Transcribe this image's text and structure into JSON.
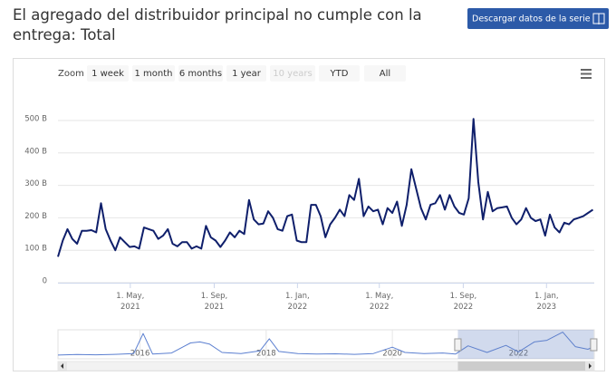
{
  "download_button": "Descargar datos de la serie",
  "range_selector": {
    "label": "Zoom",
    "buttons": [
      {
        "label": "1 week"
      },
      {
        "label": "1 month"
      },
      {
        "label": "6 months"
      },
      {
        "label": "1 year"
      },
      {
        "label": "10 years",
        "disabled": true
      },
      {
        "label": "YTD"
      },
      {
        "label": "All"
      }
    ]
  },
  "chart_data": [
    {
      "type": "line",
      "title": "El agregado del distribuidor principal no cumple con la entrega: Total",
      "color": "#0f1f6b",
      "grid": true,
      "ylim": [
        0,
        500
      ],
      "yticks": [
        0,
        {
          "value": 100,
          "label": "100 B"
        },
        {
          "value": 200,
          "label": "200 B"
        },
        {
          "value": 300,
          "label": "300 B"
        },
        {
          "value": 400,
          "label": "400 B"
        },
        {
          "value": 500,
          "label": "500 B"
        }
      ],
      "xlim": [
        "2021-01-15",
        "2023-03-12"
      ],
      "xticks": [
        {
          "value": "2021-05-01",
          "label": "1. May, 2021"
        },
        {
          "value": "2021-09-01",
          "label": "1. Sep, 2021"
        },
        {
          "value": "2022-01-01",
          "label": "1. Jan, 2022"
        },
        {
          "value": "2022-05-01",
          "label": "1. May, 2022"
        },
        {
          "value": "2022-09-01",
          "label": "1. Sep, 2022"
        },
        {
          "value": "2023-01-01",
          "label": "1. Jan, 2023"
        }
      ],
      "x": [
        "2021-01-15",
        "2021-01-22",
        "2021-01-29",
        "2021-02-05",
        "2021-02-12",
        "2021-02-19",
        "2021-02-26",
        "2021-03-05",
        "2021-03-12",
        "2021-03-19",
        "2021-03-26",
        "2021-04-02",
        "2021-04-09",
        "2021-04-16",
        "2021-04-23",
        "2021-04-30",
        "2021-05-07",
        "2021-05-14",
        "2021-05-21",
        "2021-05-28",
        "2021-06-04",
        "2021-06-11",
        "2021-06-18",
        "2021-06-25",
        "2021-07-02",
        "2021-07-09",
        "2021-07-16",
        "2021-07-23",
        "2021-07-30",
        "2021-08-06",
        "2021-08-13",
        "2021-08-20",
        "2021-08-27",
        "2021-09-03",
        "2021-09-10",
        "2021-09-17",
        "2021-09-24",
        "2021-10-01",
        "2021-10-08",
        "2021-10-15",
        "2021-10-22",
        "2021-10-29",
        "2021-11-05",
        "2021-11-12",
        "2021-11-19",
        "2021-11-26",
        "2021-12-03",
        "2021-12-10",
        "2021-12-17",
        "2021-12-24",
        "2021-12-31",
        "2022-01-07",
        "2022-01-14",
        "2022-01-21",
        "2022-01-28",
        "2022-02-04",
        "2022-02-11",
        "2022-02-18",
        "2022-02-25",
        "2022-03-04",
        "2022-03-11",
        "2022-03-18",
        "2022-03-25",
        "2022-04-01",
        "2022-04-08",
        "2022-04-15",
        "2022-04-22",
        "2022-04-29",
        "2022-05-06",
        "2022-05-13",
        "2022-05-20",
        "2022-05-27",
        "2022-06-03",
        "2022-06-10",
        "2022-06-17",
        "2022-06-24",
        "2022-07-01",
        "2022-07-08",
        "2022-07-15",
        "2022-07-22",
        "2022-07-29",
        "2022-08-05",
        "2022-08-12",
        "2022-08-19",
        "2022-08-26",
        "2022-09-02",
        "2022-09-09",
        "2022-09-16",
        "2022-09-23",
        "2022-09-30",
        "2022-10-07",
        "2022-10-14",
        "2022-10-21",
        "2022-10-28",
        "2022-11-04",
        "2022-11-11",
        "2022-11-18",
        "2022-11-25",
        "2022-12-02",
        "2022-12-09",
        "2022-12-16",
        "2022-12-23",
        "2022-12-30",
        "2023-01-06",
        "2023-01-13",
        "2023-01-20",
        "2023-01-27",
        "2023-02-03",
        "2023-02-10",
        "2023-02-17",
        "2023-02-24",
        "2023-03-03",
        "2023-03-10"
      ],
      "values": [
        80,
        130,
        165,
        135,
        120,
        160,
        160,
        162,
        155,
        245,
        165,
        130,
        100,
        140,
        125,
        110,
        112,
        105,
        170,
        165,
        160,
        135,
        145,
        165,
        120,
        112,
        125,
        125,
        105,
        112,
        105,
        175,
        140,
        130,
        110,
        130,
        155,
        140,
        160,
        150,
        255,
        195,
        180,
        182,
        220,
        200,
        165,
        160,
        205,
        210,
        130,
        125,
        125,
        240,
        240,
        205,
        140,
        180,
        200,
        225,
        205,
        270,
        255,
        320,
        205,
        235,
        220,
        225,
        180,
        230,
        215,
        250,
        175,
        240,
        350,
        290,
        230,
        195,
        240,
        245,
        270,
        225,
        270,
        235,
        215,
        210,
        260,
        505,
        310,
        195,
        280,
        220,
        230,
        232,
        235,
        200,
        180,
        195,
        230,
        200,
        190,
        195,
        145,
        210,
        170,
        155,
        185,
        180,
        195,
        200,
        205,
        215,
        225
      ]
    },
    {
      "type": "line",
      "color": "#5b7fd0",
      "ylim": [
        0,
        550
      ],
      "xlim": [
        2014.7,
        2023.2
      ],
      "xticks": [
        2016,
        2018,
        2020,
        2022
      ],
      "x": [
        2014.7,
        2015.0,
        2015.3,
        2015.6,
        2015.9,
        2016.05,
        2016.2,
        2016.5,
        2016.8,
        2016.95,
        2017.1,
        2017.3,
        2017.6,
        2017.9,
        2018.05,
        2018.2,
        2018.5,
        2018.8,
        2019.1,
        2019.4,
        2019.7,
        2020.0,
        2020.2,
        2020.5,
        2020.8,
        2021.0,
        2021.2,
        2021.5,
        2021.8,
        2022.0,
        2022.25,
        2022.45,
        2022.7,
        2022.9,
        2023.1,
        2023.18
      ],
      "values": [
        70,
        80,
        75,
        85,
        100,
        480,
        90,
        110,
        300,
        320,
        280,
        120,
        100,
        150,
        380,
        140,
        100,
        90,
        95,
        85,
        100,
        220,
        120,
        100,
        110,
        90,
        245,
        120,
        255,
        130,
        320,
        350,
        505,
        230,
        180,
        225
      ]
    }
  ]
}
